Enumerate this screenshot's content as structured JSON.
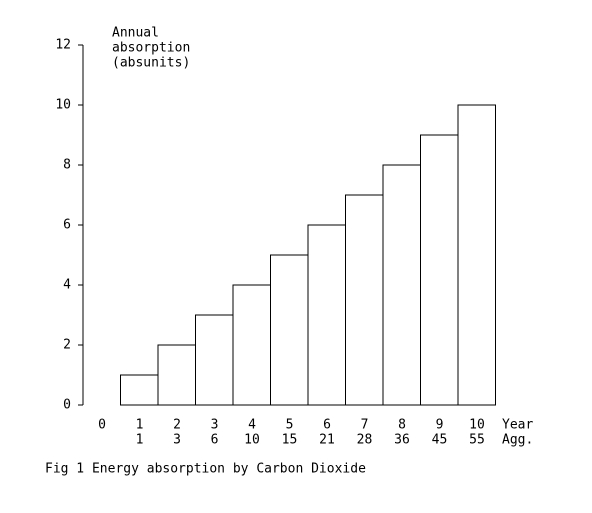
{
  "chart_data": {
    "type": "bar",
    "title": "Fig 1  Energy absorption by Carbon Dioxide",
    "y_label": [
      "Annual",
      "absorption",
      "(absunits)"
    ],
    "x_label": "Year",
    "x2_label": "Agg.",
    "categories": [
      "0",
      "1",
      "2",
      "3",
      "4",
      "5",
      "6",
      "7",
      "8",
      "9",
      "10"
    ],
    "aggregates": [
      null,
      1,
      3,
      6,
      10,
      15,
      21,
      28,
      36,
      45,
      55
    ],
    "values": [
      0,
      1,
      2,
      3,
      4,
      5,
      6,
      7,
      8,
      9,
      10
    ],
    "color": "#ffffff",
    "ylim": [
      0,
      12
    ],
    "yticks": [
      0,
      2,
      4,
      6,
      8,
      10,
      12
    ],
    "grid": false
  }
}
